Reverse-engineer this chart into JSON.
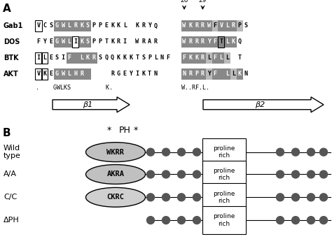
{
  "bg_color": "#ffffff",
  "panel_A_label": "A",
  "panel_B_label": "B",
  "seq_rows": [
    "Gab1",
    "DOS",
    "BTK",
    "AKT"
  ],
  "left_seqs": [
    "VCSGWLRKSPPEKKL KRYQ",
    "FYEGWLIKSPPTKRI WRAR",
    "ILESIF LKRSQQKKKTSPLNF",
    "VKEGWLHR    RGEYIKTN"
  ],
  "right_seqs": [
    "WKRRWFVLRPS",
    "WRRRYFTLKQ ",
    "FKKRLFLL T ",
    "NRPRYF LLKN"
  ],
  "consensus_left": ".    GWLKS          K.",
  "consensus_right": "W..RF.L.",
  "arrow1_label": "β1",
  "arrow2_label": "β2",
  "pos26": "26",
  "pos29": "29",
  "left_dark_cols": {
    "0": [
      3,
      4,
      5,
      6,
      7,
      8
    ],
    "1": [
      3,
      4,
      5,
      6,
      7,
      8
    ],
    "2": [
      5,
      6,
      7,
      8,
      9
    ],
    "3": [
      3,
      4,
      5,
      6,
      7,
      8
    ]
  },
  "left_box_cols": {
    "0": [
      0
    ],
    "1": [
      6
    ],
    "2": [
      0,
      1
    ],
    "3": [
      0,
      1
    ]
  },
  "right_dark_cols": {
    "0": [
      0,
      1,
      2,
      3,
      4,
      5,
      6,
      7,
      8,
      9
    ],
    "1": [
      0,
      1,
      2,
      3,
      4,
      5,
      6,
      7,
      8
    ],
    "2": [
      0,
      1,
      2,
      3,
      4,
      5,
      6,
      7
    ],
    "3": [
      0,
      1,
      2,
      3,
      4,
      5,
      6,
      7,
      8,
      9
    ]
  },
  "right_box_cols": {
    "0": [],
    "1": [
      6
    ],
    "2": [],
    "3": []
  },
  "right_white_dark_cols": {
    "0": [
      5,
      9
    ],
    "1": [],
    "2": [
      4,
      7
    ],
    "3": [
      4,
      8
    ]
  },
  "wt_label": "Wild\ntype",
  "aa_label": "A/A",
  "cc_label": "C/C",
  "dph_label": "ΔPH",
  "ph_label": "PH",
  "wt_seq": "WKRR",
  "aa_seq": "AKRA",
  "cc_seq": "CKRC",
  "proline_rich": "proline\nrich",
  "dot_color": "#555555",
  "gray_bg": "#888888",
  "light_gray_bg": "#bbbbbb"
}
